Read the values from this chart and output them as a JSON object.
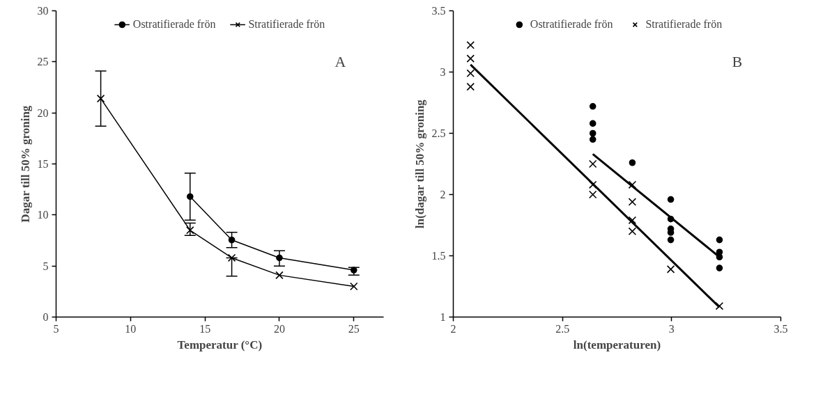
{
  "chart_data": [
    {
      "type": "line",
      "xlabel": "Temperatur (°C)",
      "ylabel": "Dagar till 50% groning",
      "annotations": [
        "A"
      ],
      "xlim": [
        5,
        27
      ],
      "xticks": [
        5,
        10,
        15,
        20,
        25
      ],
      "ylim": [
        0,
        30
      ],
      "yticks": [
        0,
        5,
        10,
        15,
        20,
        25,
        30
      ],
      "grid": false,
      "legend": "top",
      "series": [
        {
          "name": "Ostratifierade frön",
          "color": "#000000",
          "marker": "circle",
          "x": [
            14,
            16.8,
            20,
            25
          ],
          "values": [
            11.8,
            7.55,
            5.8,
            4.6
          ],
          "errors": [
            2.3,
            0.75,
            [
              5.0,
              6.5
            ],
            [
              4.1,
              4.85
            ]
          ]
        },
        {
          "name": "Stratifierade frön",
          "color": "#000000",
          "marker": "cross",
          "x": [
            8,
            14,
            16.8,
            20,
            25
          ],
          "values": [
            21.4,
            8.5,
            5.8,
            4.1,
            3.0
          ],
          "errors": [
            [
              18.7,
              24.1
            ],
            [
              8.0,
              9.2
            ],
            [
              4.0,
              5.8
            ],
            null,
            null
          ]
        }
      ]
    },
    {
      "type": "scatter",
      "xlabel": "ln(temperaturen)",
      "ylabel": "ln(dagar till 50% groning",
      "annotations": [
        "B"
      ],
      "xlim": [
        2,
        3.5
      ],
      "xticks": [
        2,
        2.5,
        3,
        3.5
      ],
      "ylim": [
        1,
        3.5
      ],
      "yticks": [
        1,
        1.5,
        2,
        2.5,
        3,
        3.5
      ],
      "grid": false,
      "legend": "top",
      "series": [
        {
          "name": "Ostratifierade frön",
          "color": "#000000",
          "marker": "circle",
          "x": [
            2.639,
            2.639,
            2.639,
            2.639,
            2.82,
            2.996,
            2.996,
            2.996,
            2.996,
            2.996,
            3.219,
            3.219,
            3.219,
            3.219
          ],
          "values": [
            2.72,
            2.58,
            2.5,
            2.45,
            2.26,
            1.96,
            1.8,
            1.72,
            1.69,
            1.63,
            1.63,
            1.53,
            1.49,
            1.4
          ]
        },
        {
          "name": "Stratifierade frön",
          "color": "#000000",
          "marker": "cross",
          "x": [
            2.079,
            2.079,
            2.079,
            2.079,
            2.639,
            2.639,
            2.639,
            2.82,
            2.82,
            2.82,
            2.82,
            2.996,
            3.219
          ],
          "values": [
            3.22,
            3.11,
            2.99,
            2.88,
            2.25,
            2.08,
            2.0,
            2.08,
            1.94,
            1.79,
            1.7,
            1.39,
            1.09
          ]
        },
        {
          "type": "line",
          "color": "#000000",
          "x": [
            2.639,
            3.219
          ],
          "values": [
            2.33,
            1.49
          ]
        },
        {
          "type": "line",
          "color": "#000000",
          "x": [
            2.079,
            3.219
          ],
          "values": [
            3.06,
            1.08
          ]
        }
      ]
    }
  ]
}
